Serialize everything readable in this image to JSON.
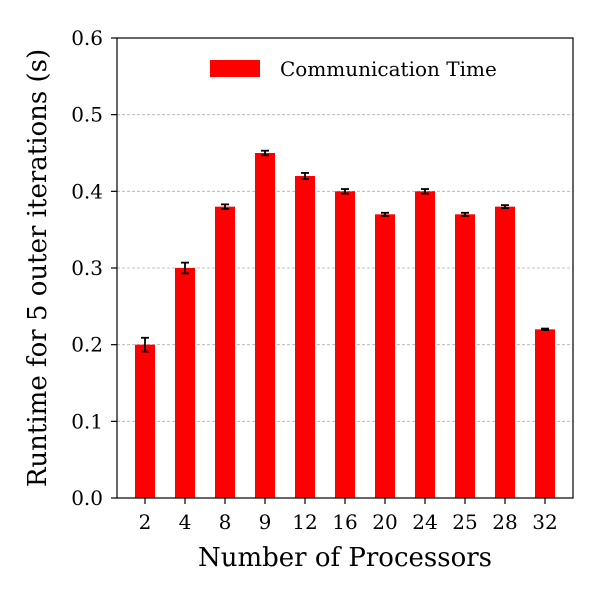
{
  "chart_data": {
    "type": "bar",
    "xlabel": "Number of Processors",
    "ylabel": "Runtime for 5 outer iterations (s)",
    "categories": [
      "2",
      "4",
      "8",
      "9",
      "12",
      "16",
      "20",
      "24",
      "25",
      "28",
      "32"
    ],
    "series": [
      {
        "name": "Communication Time",
        "color": "#ff0000",
        "values": [
          0.2,
          0.3,
          0.38,
          0.45,
          0.42,
          0.4,
          0.37,
          0.4,
          0.37,
          0.38,
          0.22
        ],
        "errors": [
          0.009,
          0.007,
          0.003,
          0.003,
          0.004,
          0.003,
          0.002,
          0.003,
          0.002,
          0.002,
          0.001
        ]
      }
    ],
    "ylim": [
      0,
      0.6
    ],
    "yticks": [
      "0.0",
      "0.1",
      "0.2",
      "0.3",
      "0.4",
      "0.5",
      "0.6"
    ],
    "grid": "horizontal-dashed",
    "legend_position": "top-right"
  }
}
